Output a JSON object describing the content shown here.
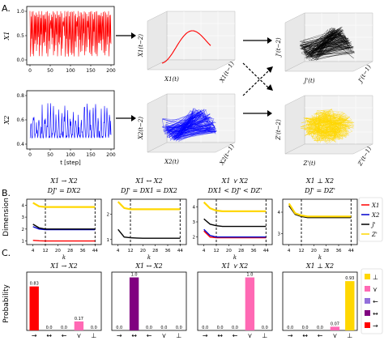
{
  "panels": {
    "a_label": "A.",
    "b_label": "B.",
    "c_label": "C."
  },
  "panel_a": {
    "ts1": {
      "ylabel": "X1",
      "xticks": [
        "0",
        "50",
        "100",
        "150",
        "200"
      ],
      "yticks": [
        "0.0",
        "0.5",
        "1.0"
      ],
      "color": "#ff0000"
    },
    "ts2": {
      "ylabel": "X2",
      "xticks": [
        "0",
        "50",
        "100",
        "150",
        "200"
      ],
      "yticks": [
        "0.4",
        "0.6",
        "0.8"
      ],
      "xlabel": "t [step]",
      "color": "#0000ff"
    },
    "cubes": [
      {
        "name": "x1-embedding",
        "zlabel": "X1(t−2)",
        "xlabel": "X1(t)",
        "ylabel": "X1(t−1)",
        "color": "#ff0000"
      },
      {
        "name": "x2-embedding",
        "zlabel": "X2(t−2)",
        "xlabel": "X2(t)",
        "ylabel": "X2(t−1)",
        "color": "#0000ff"
      },
      {
        "name": "jprime-embedding",
        "zlabel": "J'(t−2)",
        "xlabel": "J'(t)",
        "ylabel": "J'(t−1)",
        "color": "#000000"
      },
      {
        "name": "zprime-embedding",
        "zlabel": "Z'(t−2)",
        "xlabel": "Z'(t)",
        "ylabel": "Z'(t−1)",
        "color": "#ffd700"
      }
    ]
  },
  "panel_b": {
    "ylabel": "Dimension",
    "xlabel": "k",
    "xticks": [
      "4",
      "12",
      "20",
      "28",
      "36",
      "44"
    ],
    "yticks": [
      "1",
      "2",
      "3",
      "4"
    ],
    "titles": [
      {
        "line1": "X1 → X2",
        "line2": "DJ' = DX2"
      },
      {
        "line1": "X1 ↔ X2",
        "line2": "DJ' = DX1 = DX2"
      },
      {
        "line1": "X1 ⋎ X2",
        "line2": "DX1 < DJ' < DZ'"
      },
      {
        "line1": "X1 ⊥ X2",
        "line2": "DJ' = DZ'"
      }
    ],
    "legend": [
      {
        "label": "X1",
        "color": "#ff0000"
      },
      {
        "label": "X2",
        "color": "#0000cd"
      },
      {
        "label": "J'",
        "color": "#000000"
      },
      {
        "label": "Z'",
        "color": "#ffd700"
      }
    ]
  },
  "panel_c": {
    "ylabel": "Probability",
    "categories": [
      "→",
      "↔",
      "←",
      "⋎",
      "⊥"
    ],
    "legend": [
      {
        "label": "⊥",
        "color": "#ffd700"
      },
      {
        "label": "⋎",
        "color": "#ff69b4"
      },
      {
        "label": "←",
        "color": "#9370db"
      },
      {
        "label": "↔",
        "color": "#800080"
      },
      {
        "label": "→",
        "color": "#ff0000"
      }
    ]
  },
  "chart_data": [
    {
      "type": "line",
      "panel": "B-1",
      "title": "X1 → X2",
      "x": [
        4,
        8,
        12,
        16,
        20,
        24,
        28,
        32,
        36,
        40,
        44
      ],
      "series": [
        {
          "name": "X1",
          "values": [
            1.05,
            1.02,
            1.0,
            1.0,
            1.0,
            1.0,
            1.0,
            1.0,
            1.0,
            1.0,
            1.0
          ]
        },
        {
          "name": "X2",
          "values": [
            2.2,
            2.0,
            1.95,
            1.95,
            1.95,
            1.95,
            1.95,
            1.95,
            1.95,
            1.95,
            1.95
          ]
        },
        {
          "name": "J'",
          "values": [
            2.4,
            2.1,
            2.0,
            2.0,
            2.0,
            2.0,
            2.0,
            2.0,
            2.0,
            2.0,
            2.0
          ]
        },
        {
          "name": "Z'",
          "values": [
            4.2,
            3.9,
            3.85,
            3.85,
            3.85,
            3.85,
            3.85,
            3.85,
            3.85,
            3.85,
            3.85
          ]
        }
      ],
      "ylim": [
        0.7,
        4.5
      ],
      "markers": [
        12,
        44
      ]
    },
    {
      "type": "line",
      "panel": "B-2",
      "title": "X1 ↔ X2",
      "x": [
        4,
        8,
        12,
        16,
        20,
        24,
        28,
        32,
        36,
        40,
        44
      ],
      "series": [
        {
          "name": "J'",
          "values": [
            1.4,
            1.1,
            1.07,
            1.06,
            1.05,
            1.05,
            1.05,
            1.05,
            1.05,
            1.05,
            1.05
          ]
        },
        {
          "name": "Z'",
          "values": [
            2.5,
            2.25,
            2.2,
            2.2,
            2.2,
            2.2,
            2.2,
            2.2,
            2.2,
            2.2,
            2.2
          ]
        }
      ],
      "ylim": [
        0.8,
        2.6
      ],
      "markers": [
        12,
        44
      ]
    },
    {
      "type": "line",
      "panel": "B-3",
      "title": "X1 ⋎ X2",
      "x": [
        4,
        8,
        12,
        16,
        20,
        24,
        28,
        32,
        36,
        40,
        44
      ],
      "series": [
        {
          "name": "X1",
          "values": [
            2.4,
            2.0,
            1.95,
            1.95,
            1.95,
            1.95,
            1.95,
            1.95,
            1.95,
            1.95,
            1.95
          ]
        },
        {
          "name": "X2",
          "values": [
            2.5,
            2.1,
            2.0,
            2.0,
            2.0,
            2.0,
            2.0,
            2.0,
            2.0,
            2.0,
            2.0
          ]
        },
        {
          "name": "J'",
          "values": [
            3.2,
            2.85,
            2.75,
            2.7,
            2.7,
            2.7,
            2.7,
            2.7,
            2.7,
            2.7,
            2.7
          ]
        },
        {
          "name": "Z'",
          "values": [
            4.3,
            3.9,
            3.75,
            3.7,
            3.7,
            3.7,
            3.7,
            3.7,
            3.7,
            3.7,
            3.7
          ]
        }
      ],
      "ylim": [
        1.5,
        4.5
      ],
      "markers": [
        12,
        44
      ]
    },
    {
      "type": "line",
      "panel": "B-4",
      "title": "X1 ⊥ X2",
      "x": [
        4,
        8,
        12,
        16,
        20,
        24,
        28,
        32,
        36,
        40,
        44
      ],
      "series": [
        {
          "name": "J'",
          "values": [
            4.3,
            3.9,
            3.8,
            3.75,
            3.75,
            3.75,
            3.75,
            3.75,
            3.75,
            3.75,
            3.75
          ]
        },
        {
          "name": "Z'",
          "values": [
            4.4,
            3.95,
            3.85,
            3.8,
            3.8,
            3.8,
            3.8,
            3.8,
            3.8,
            3.8,
            3.8
          ]
        }
      ],
      "ylim": [
        2.5,
        4.6
      ],
      "markers": [
        12,
        44
      ]
    },
    {
      "type": "bar",
      "panel": "C-1",
      "title": "X1 → X2",
      "categories": [
        "→",
        "↔",
        "←",
        "⋎",
        "⊥"
      ],
      "values": [
        0.83,
        0.0,
        0.0,
        0.17,
        0.0
      ],
      "labels": [
        "0.83",
        "0.0",
        "0.0",
        "0.17",
        "0.0"
      ],
      "colors": [
        "#ff0000",
        "#800080",
        "#9370db",
        "#ff69b4",
        "#ffd700"
      ],
      "ylim": [
        0,
        1
      ]
    },
    {
      "type": "bar",
      "panel": "C-2",
      "title": "X1 ↔ X2",
      "categories": [
        "→",
        "↔",
        "←",
        "⋎",
        "⊥"
      ],
      "values": [
        0.0,
        1.0,
        0.0,
        0.0,
        0.0
      ],
      "labels": [
        "0.0",
        "1.0",
        "0.0",
        "0.0",
        "0.0"
      ],
      "colors": [
        "#ff0000",
        "#800080",
        "#9370db",
        "#ff69b4",
        "#ffd700"
      ],
      "ylim": [
        0,
        1
      ]
    },
    {
      "type": "bar",
      "panel": "C-3",
      "title": "X1 ⋎ X2",
      "categories": [
        "→",
        "↔",
        "←",
        "⋎",
        "⊥"
      ],
      "values": [
        0.0,
        0.0,
        0.0,
        1.0,
        0.0
      ],
      "labels": [
        "0.0",
        "0.0",
        "0.0",
        "1.0",
        "0.0"
      ],
      "colors": [
        "#ff0000",
        "#800080",
        "#9370db",
        "#ff69b4",
        "#ffd700"
      ],
      "ylim": [
        0,
        1
      ]
    },
    {
      "type": "bar",
      "panel": "C-4",
      "title": "X1 ⊥ X2",
      "categories": [
        "→",
        "↔",
        "←",
        "⋎",
        "⊥"
      ],
      "values": [
        0.0,
        0.0,
        0.0,
        0.07,
        0.93
      ],
      "labels": [
        "0.0",
        "0.0",
        "0.0",
        "0.07",
        "0.93"
      ],
      "colors": [
        "#ff0000",
        "#800080",
        "#9370db",
        "#ff69b4",
        "#ffd700"
      ],
      "ylim": [
        0,
        1
      ]
    }
  ]
}
